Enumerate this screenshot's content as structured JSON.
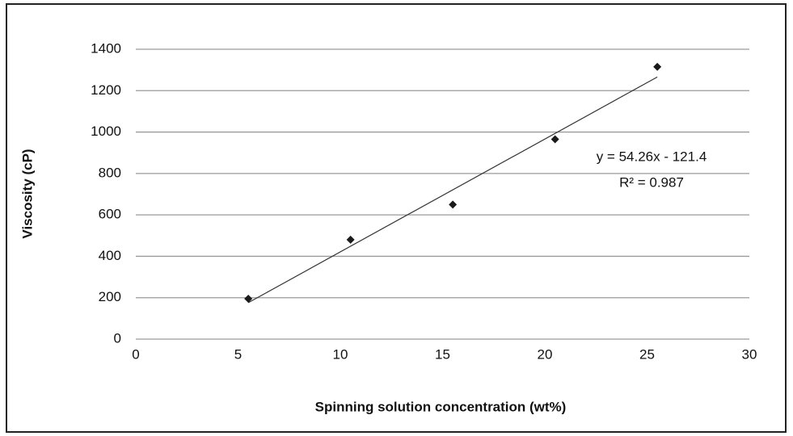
{
  "chart_data": {
    "type": "scatter",
    "x_label": "Spinning solution concentration (wt%)",
    "y_label": "Viscosity (cP)",
    "series": [
      {
        "name": "Viscosity",
        "color": "#1a1a1a",
        "x": [
          5.5,
          10.5,
          15.5,
          20.5,
          25.5
        ],
        "values": [
          195,
          480,
          650,
          965,
          1315
        ]
      }
    ],
    "annotations": [
      "y = 54.26x - 121.4",
      "R² = 0.987"
    ],
    "xlim": [
      0,
      30
    ],
    "xticks": [
      0,
      5,
      10,
      15,
      20,
      25,
      30
    ],
    "ylim": [
      0,
      1400
    ],
    "yticks": [
      0,
      200,
      400,
      600,
      800,
      1000,
      1200,
      1400
    ],
    "grid": true,
    "trendline": "linear"
  }
}
